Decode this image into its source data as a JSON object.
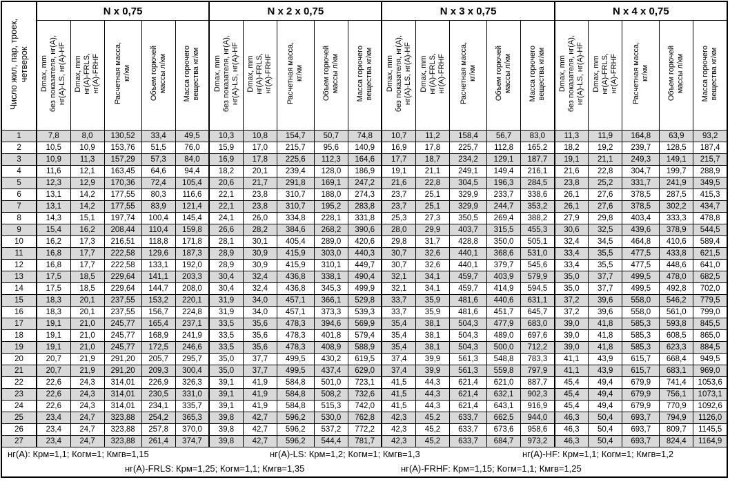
{
  "table": {
    "row_header": "Число жил, пар, троек,\nчетверок",
    "groups": [
      "N x 0,75",
      "N x 2 x 0,75",
      "N x 3 x 0,75",
      "N x 4 x 0,75"
    ],
    "subcolumns": [
      "Dmax, mm\nбез показателя, нг(А),\nнг(А)-LS, нг(А)-HF",
      "Dmax, mm\nнг(А)-FRLS,\nнг(А)-FRHF",
      "Расчетная масса,\nкг/км",
      "Объем горючей\nмассы л/км",
      "Масса горючего\nвещества кг/км"
    ],
    "rows": [
      {
        "n": "1",
        "values": [
          "7,8",
          "8,0",
          "130,52",
          "33,4",
          "49,5",
          "10,3",
          "10,8",
          "154,7",
          "50,7",
          "74,8",
          "10,7",
          "11,2",
          "158,4",
          "56,7",
          "83,0",
          "11,3",
          "11,9",
          "164,8",
          "63,9",
          "93,2"
        ]
      },
      {
        "n": "2",
        "values": [
          "10,5",
          "10,9",
          "153,76",
          "51,5",
          "76,0",
          "15,9",
          "17,0",
          "215,7",
          "95,6",
          "140,9",
          "16,9",
          "17,8",
          "225,7",
          "112,8",
          "165,2",
          "18,2",
          "19,2",
          "239,7",
          "128,5",
          "187,4"
        ]
      },
      {
        "n": "3",
        "values": [
          "10,9",
          "11,3",
          "157,29",
          "57,3",
          "84,0",
          "16,9",
          "17,8",
          "225,6",
          "112,3",
          "164,6",
          "17,7",
          "18,7",
          "234,2",
          "129,1",
          "187,7",
          "19,1",
          "21,1",
          "249,3",
          "149,1",
          "215,7"
        ]
      },
      {
        "n": "4",
        "values": [
          "11,6",
          "12,1",
          "163,45",
          "64,6",
          "94,4",
          "18,2",
          "20,1",
          "239,4",
          "128,0",
          "186,9",
          "19,1",
          "21,1",
          "249,1",
          "149,4",
          "216,1",
          "21,6",
          "22,8",
          "304,7",
          "199,7",
          "288,9"
        ]
      },
      {
        "n": "5",
        "values": [
          "12,3",
          "12,9",
          "170,36",
          "72,4",
          "105,4",
          "20,6",
          "21,7",
          "291,8",
          "169,1",
          "247,2",
          "21,6",
          "22,8",
          "304,5",
          "196,3",
          "284,5",
          "23,8",
          "25,2",
          "331,7",
          "241,9",
          "349,5"
        ]
      },
      {
        "n": "6",
        "values": [
          "13,1",
          "14,2",
          "177,55",
          "80,3",
          "116,6",
          "22,1",
          "23,8",
          "310,7",
          "188,0",
          "274,3",
          "23,7",
          "25,1",
          "329,9",
          "233,7",
          "338,6",
          "26,1",
          "27,6",
          "378,5",
          "287,5",
          "415,3"
        ]
      },
      {
        "n": "7",
        "values": [
          "13,1",
          "14,2",
          "177,55",
          "83,9",
          "121,4",
          "22,1",
          "23,8",
          "310,7",
          "195,2",
          "283,8",
          "23,7",
          "25,1",
          "329,9",
          "244,7",
          "353,2",
          "26,1",
          "27,6",
          "378,5",
          "302,2",
          "434,7"
        ]
      },
      {
        "n": "8",
        "values": [
          "14,3",
          "15,1",
          "197,74",
          "100,4",
          "145,4",
          "24,1",
          "26,0",
          "334,8",
          "228,1",
          "331,8",
          "25,3",
          "27,3",
          "350,5",
          "269,4",
          "388,2",
          "27,9",
          "29,8",
          "403,4",
          "333,3",
          "478,8"
        ]
      },
      {
        "n": "9",
        "values": [
          "15,4",
          "16,2",
          "208,44",
          "110,4",
          "159,8",
          "26,6",
          "28,2",
          "384,6",
          "268,2",
          "390,6",
          "28,0",
          "29,9",
          "403,7",
          "315,5",
          "455,3",
          "30,6",
          "32,5",
          "439,6",
          "378,9",
          "544,5"
        ]
      },
      {
        "n": "10",
        "values": [
          "16,2",
          "17,3",
          "216,51",
          "118,8",
          "171,8",
          "28,1",
          "30,1",
          "405,4",
          "289,0",
          "420,6",
          "29,8",
          "31,7",
          "428,8",
          "350,0",
          "505,1",
          "32,4",
          "34,5",
          "464,8",
          "410,6",
          "589,4"
        ]
      },
      {
        "n": "11",
        "values": [
          "16,8",
          "17,7",
          "222,58",
          "129,6",
          "187,3",
          "28,9",
          "30,9",
          "415,9",
          "303,0",
          "440,3",
          "30,7",
          "32,6",
          "440,1",
          "368,6",
          "531,0",
          "33,4",
          "35,5",
          "477,5",
          "433,8",
          "621,5"
        ]
      },
      {
        "n": "12",
        "values": [
          "16,8",
          "17,7",
          "222,58",
          "133,1",
          "192,0",
          "28,9",
          "30,9",
          "415,9",
          "310,1",
          "449,7",
          "30,7",
          "32,6",
          "440,1",
          "379,7",
          "545,6",
          "33,4",
          "35,5",
          "477,5",
          "448,6",
          "641,0"
        ]
      },
      {
        "n": "13",
        "values": [
          "17,5",
          "18,5",
          "229,64",
          "141,1",
          "203,3",
          "30,4",
          "32,4",
          "436,8",
          "338,1",
          "490,4",
          "32,1",
          "34,1",
          "459,7",
          "403,9",
          "579,9",
          "35,0",
          "37,7",
          "499,5",
          "478,0",
          "682,5"
        ]
      },
      {
        "n": "14",
        "values": [
          "17,5",
          "18,5",
          "229,64",
          "144,7",
          "208,0",
          "30,4",
          "32,4",
          "436,8",
          "345,3",
          "499,9",
          "32,1",
          "34,1",
          "459,7",
          "414,9",
          "594,5",
          "35,0",
          "37,7",
          "499,5",
          "492,8",
          "702,0"
        ]
      },
      {
        "n": "15",
        "values": [
          "18,3",
          "20,1",
          "237,55",
          "153,2",
          "220,1",
          "31,9",
          "34,0",
          "457,1",
          "366,1",
          "529,8",
          "33,7",
          "35,9",
          "481,6",
          "440,6",
          "631,1",
          "37,2",
          "39,6",
          "558,0",
          "546,2",
          "779,5"
        ]
      },
      {
        "n": "16",
        "values": [
          "18,3",
          "20,1",
          "237,55",
          "156,7",
          "224,8",
          "31,9",
          "34,0",
          "457,1",
          "373,3",
          "539,3",
          "33,7",
          "35,9",
          "481,6",
          "451,7",
          "645,7",
          "37,2",
          "39,6",
          "558,0",
          "561,0",
          "799,0"
        ]
      },
      {
        "n": "17",
        "values": [
          "19,1",
          "21,0",
          "245,77",
          "165,4",
          "237,1",
          "33,5",
          "35,6",
          "478,3",
          "394,6",
          "569,9",
          "35,4",
          "38,1",
          "504,3",
          "477,9",
          "683,0",
          "39,0",
          "41,8",
          "585,3",
          "593,8",
          "845,5"
        ]
      },
      {
        "n": "18",
        "values": [
          "19,1",
          "21,0",
          "245,77",
          "168,9",
          "241,9",
          "33,5",
          "35,6",
          "478,3",
          "401,8",
          "579,4",
          "35,4",
          "38,1",
          "504,3",
          "489,0",
          "697,6",
          "39,0",
          "41,8",
          "585,3",
          "608,5",
          "865,0"
        ]
      },
      {
        "n": "19",
        "values": [
          "19,1",
          "21,0",
          "245,77",
          "172,5",
          "246,6",
          "33,5",
          "35,6",
          "478,3",
          "408,9",
          "588,9",
          "35,4",
          "38,1",
          "504,3",
          "500,0",
          "712,2",
          "39,0",
          "41,8",
          "585,3",
          "623,3",
          "884,5"
        ]
      },
      {
        "n": "20",
        "values": [
          "20,7",
          "21,9",
          "291,20",
          "205,7",
          "295,7",
          "35,0",
          "37,7",
          "499,5",
          "430,2",
          "619,5",
          "37,4",
          "39,9",
          "561,3",
          "548,8",
          "783,3",
          "41,1",
          "43,9",
          "615,7",
          "668,4",
          "949,5"
        ]
      },
      {
        "n": "21",
        "values": [
          "20,7",
          "21,9",
          "291,20",
          "209,3",
          "300,4",
          "35,0",
          "37,7",
          "499,5",
          "437,4",
          "629,0",
          "37,4",
          "39,9",
          "561,3",
          "559,8",
          "797,9",
          "41,1",
          "43,9",
          "615,7",
          "683,1",
          "969,0"
        ]
      },
      {
        "n": "22",
        "values": [
          "22,6",
          "24,3",
          "314,01",
          "226,9",
          "326,3",
          "39,1",
          "41,9",
          "584,8",
          "501,0",
          "723,1",
          "41,5",
          "44,3",
          "621,4",
          "621,0",
          "887,7",
          "45,4",
          "49,4",
          "679,9",
          "741,4",
          "1053,6"
        ]
      },
      {
        "n": "23",
        "values": [
          "22,6",
          "24,3",
          "314,01",
          "230,5",
          "331,0",
          "39,1",
          "41,9",
          "584,8",
          "508,2",
          "732,6",
          "41,5",
          "44,3",
          "621,4",
          "632,1",
          "902,3",
          "45,4",
          "49,4",
          "679,9",
          "756,1",
          "1073,1"
        ]
      },
      {
        "n": "24",
        "values": [
          "22,6",
          "24,3",
          "314,01",
          "234,1",
          "335,7",
          "39,1",
          "41,9",
          "584,8",
          "515,3",
          "742,0",
          "41,5",
          "44,3",
          "621,4",
          "643,1",
          "916,9",
          "45,4",
          "49,4",
          "679,9",
          "770,9",
          "1092,6"
        ]
      },
      {
        "n": "25",
        "values": [
          "23,4",
          "24,7",
          "323,88",
          "254,2",
          "365,3",
          "39,8",
          "42,7",
          "596,2",
          "530,0",
          "762,8",
          "42,3",
          "45,2",
          "633,7",
          "662,5",
          "944,0",
          "46,3",
          "50,4",
          "693,7",
          "794,9",
          "1126,0"
        ]
      },
      {
        "n": "26",
        "values": [
          "23,4",
          "24,7",
          "323,88",
          "257,8",
          "370,0",
          "39,8",
          "42,7",
          "596,2",
          "537,2",
          "772,2",
          "42,3",
          "45,2",
          "633,7",
          "673,6",
          "958,6",
          "46,3",
          "50,4",
          "693,7",
          "809,7",
          "1145,5"
        ]
      },
      {
        "n": "27",
        "values": [
          "23,4",
          "24,7",
          "323,88",
          "261,4",
          "374,7",
          "39,8",
          "42,7",
          "596,2",
          "544,4",
          "781,7",
          "42,3",
          "45,2",
          "633,7",
          "684,7",
          "973,2",
          "46,3",
          "50,4",
          "693,7",
          "824,4",
          "1164,9"
        ]
      }
    ]
  },
  "footer": {
    "line1": [
      "нг(А): Крм=1,1;  Когм=1;  Кмгв=1,15",
      "нг(А)-LS: Крм=1,2;  Когм=1;  Кмгв=1,3",
      "нг(А)-HF: Крм=1,1;  Когм=1;  Кмгв=1,2"
    ],
    "line2": [
      "нг(А)-FRLS: Крм=1,25;  Когм=1,1;  Кмгв=1,35",
      "нг(А)-FRHF: Крм=1,15;  Когм=1,1;  Кмгв=1,25"
    ]
  },
  "colors": {
    "row_shade": "#d9d9d9",
    "border": "#000000",
    "background": "#ffffff"
  }
}
